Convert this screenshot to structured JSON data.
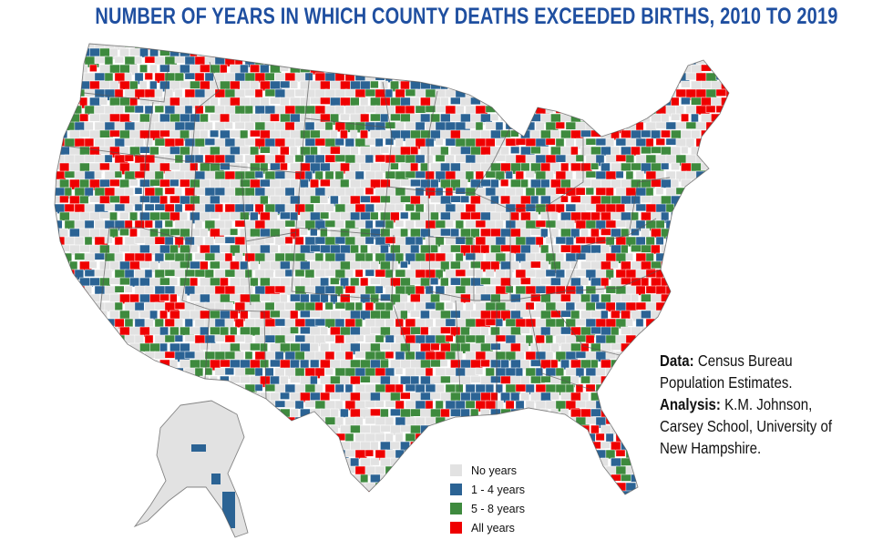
{
  "title": "NUMBER OF YEARS IN WHICH COUNTY DEATHS EXCEEDED BIRTHS, 2010 TO 2019",
  "colors": {
    "title": "#1f4fa0",
    "no_years": "#e2e2e2",
    "y1_4": "#2b6394",
    "y5_8": "#3e8a3e",
    "all_years": "#ef0000",
    "border": "#ffffff"
  },
  "legend": [
    {
      "label": "No years",
      "color": "#e2e2e2"
    },
    {
      "label": "1 - 4 years",
      "color": "#2b6394"
    },
    {
      "label": "5 - 8 years",
      "color": "#3e8a3e"
    },
    {
      "label": "All years",
      "color": "#ef0000"
    }
  ],
  "source": {
    "data_label": "Data:",
    "data_text": "Census Bureau Population Estimates.",
    "analysis_label": "Analysis:",
    "analysis_text": "K.M. Johnson, Carsey School, University of New Hampshire."
  }
}
